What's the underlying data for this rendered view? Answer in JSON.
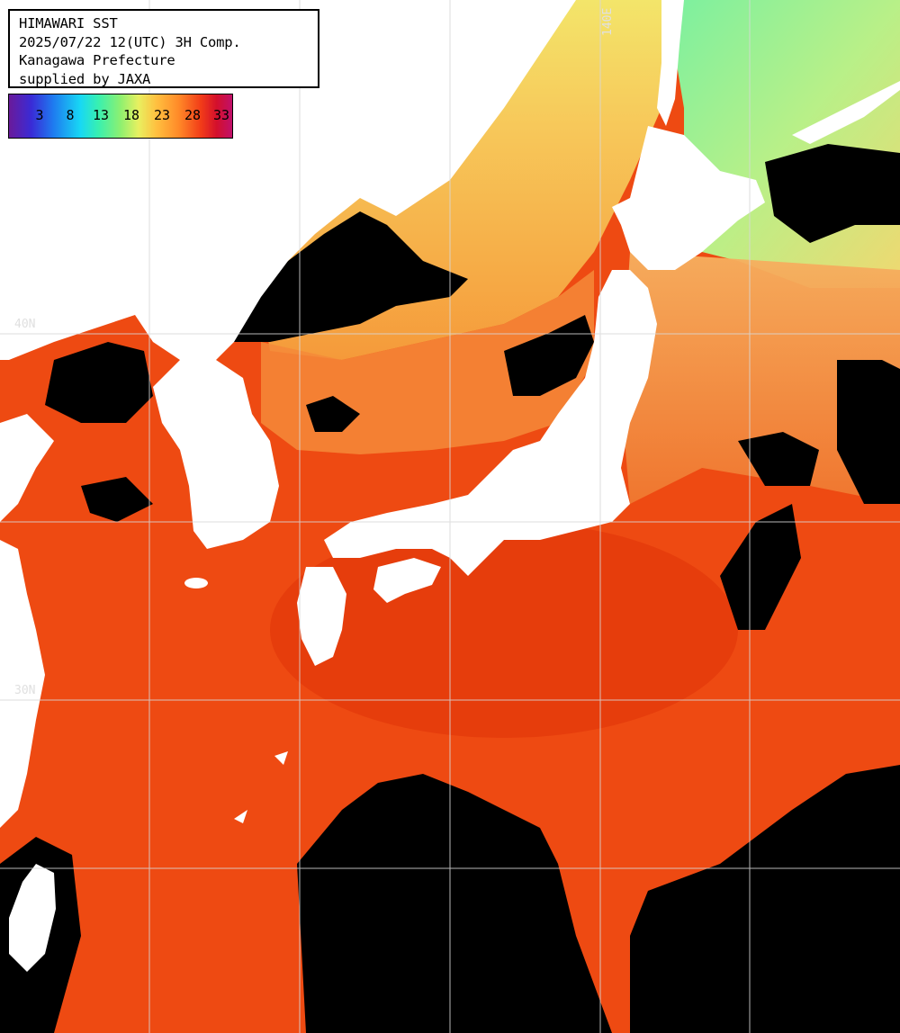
{
  "info": {
    "line1": "HIMAWARI SST",
    "line2": "2025/07/22 12(UTC) 3H Comp.",
    "line3": "Kanagawa Prefecture",
    "line4": "supplied by JAXA"
  },
  "colorbar": {
    "ticks": [
      "3",
      "8",
      "13",
      "18",
      "23",
      "28",
      "33"
    ],
    "colors": [
      "#6a1a9a",
      "#3a2bd6",
      "#18d8f4",
      "#8ef070",
      "#ffc040",
      "#f23c18",
      "#c0106a"
    ]
  },
  "grid_labels": {
    "lat_upper": "40N",
    "lat_lower": "30N",
    "lon": "140E"
  },
  "palette": {
    "land": "#ffffff",
    "no_data_cloud": "#000000",
    "warm_sea": "#f04a12",
    "hot_sea": "#e03208",
    "cool_sea": "#f6d870",
    "cold_sea": "#b8f080",
    "gridline": "#d8d8d8"
  }
}
